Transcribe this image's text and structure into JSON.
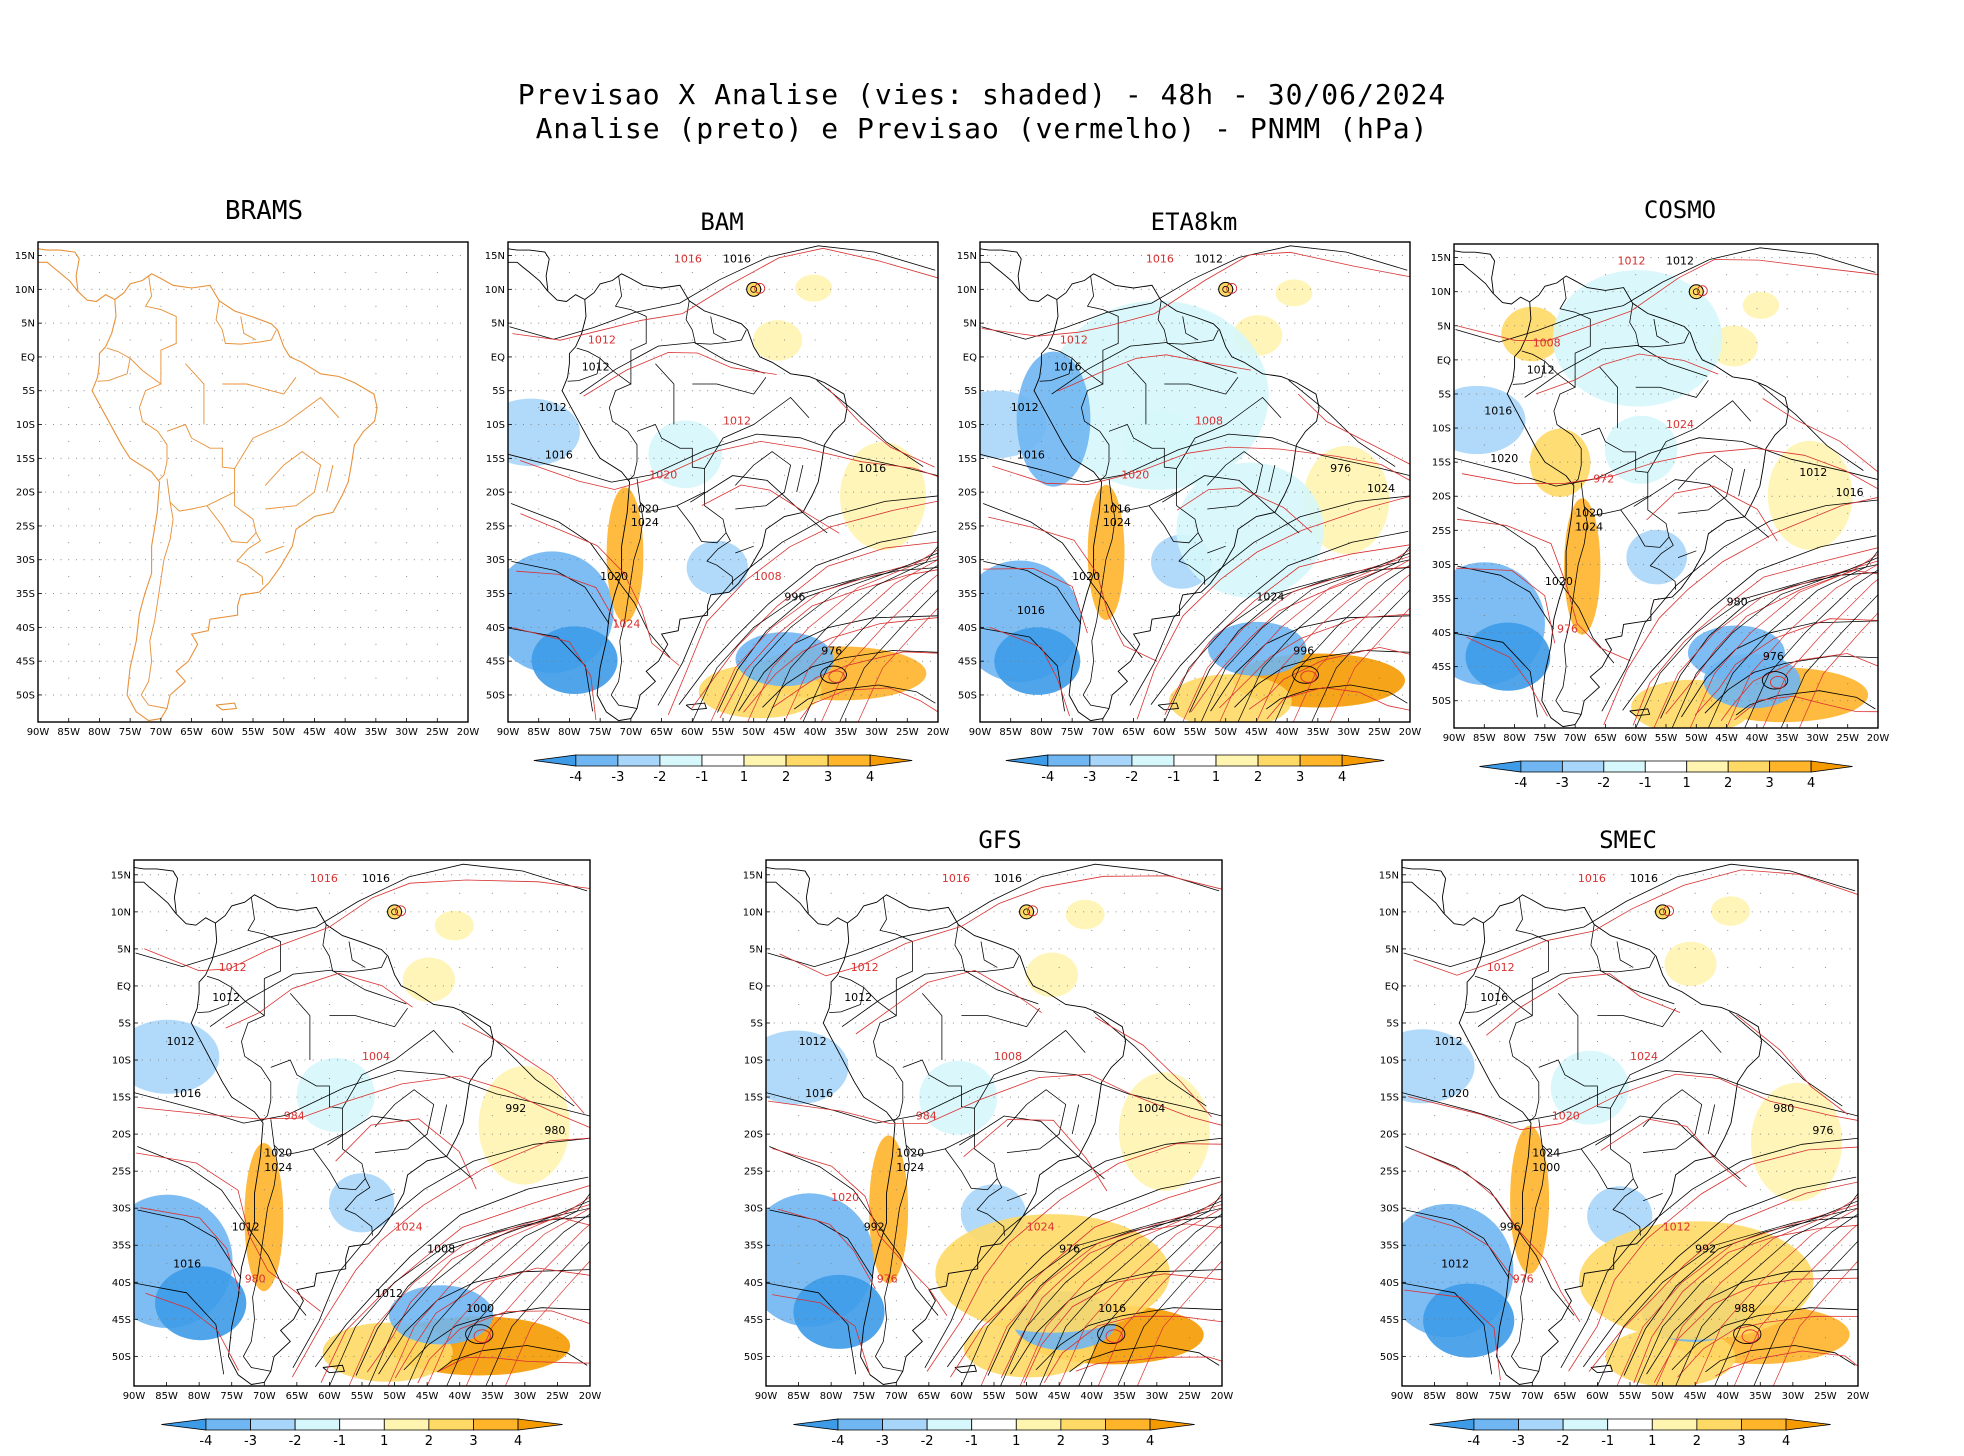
{
  "title": {
    "line1": "Previsao X Analise (vies: shaded) - 48h - 30/06/2024",
    "line2": "Analise (preto) e Previsao (vermelho) - PNMM (hPa)"
  },
  "axes": {
    "lat_labels": [
      "15N",
      "10N",
      "5N",
      "EQ",
      "5S",
      "10S",
      "15S",
      "20S",
      "25S",
      "30S",
      "35S",
      "40S",
      "45S",
      "50S"
    ],
    "lon_labels": [
      "90W",
      "85W",
      "80W",
      "75W",
      "70W",
      "65W",
      "60W",
      "55W",
      "50W",
      "45W",
      "40W",
      "35W",
      "30W",
      "25W",
      "20W"
    ]
  },
  "colorbar": {
    "labels": [
      "-4",
      "-3",
      "-2",
      "-1",
      "1",
      "2",
      "3",
      "4"
    ],
    "colors": [
      "#3d9be8",
      "#6fb6f2",
      "#a8d6fa",
      "#d6f7fb",
      "#ffffff",
      "#fff4b0",
      "#ffd966",
      "#ffb42a",
      "#f59a00"
    ]
  },
  "panels": [
    {
      "id": "brams",
      "name": "BRAMS",
      "has_colorbar": false,
      "analysis_labels": [],
      "forecast_labels": []
    },
    {
      "id": "bam",
      "name": "BAM",
      "has_colorbar": true,
      "analysis_labels": [
        "1016",
        "1012",
        "1012",
        "1016",
        "1020",
        "1024",
        "1020",
        "996",
        "976",
        "1016"
      ],
      "forecast_labels": [
        "1016",
        "1012",
        "1012",
        "1020",
        "1024",
        "1008"
      ]
    },
    {
      "id": "eta8km",
      "name": "ETA8km",
      "has_colorbar": true,
      "analysis_labels": [
        "1012",
        "1016",
        "1012",
        "1016",
        "1016",
        "1024",
        "1020",
        "1024",
        "996",
        "976",
        "1024",
        "1016"
      ],
      "forecast_labels": [
        "1016",
        "1012",
        "1008",
        "1020"
      ]
    },
    {
      "id": "cosmo",
      "name": "COSMO",
      "has_colorbar": true,
      "analysis_labels": [
        "1012",
        "1012",
        "1016",
        "1020",
        "1020",
        "1024",
        "1020",
        "980",
        "976",
        "1012",
        "1016"
      ],
      "forecast_labels": [
        "1012",
        "1008",
        "1024",
        "972",
        "976"
      ]
    },
    {
      "id": "panel5",
      "name": "",
      "has_colorbar": true,
      "analysis_labels": [
        "1016",
        "1012",
        "1012",
        "1016",
        "1020",
        "1024",
        "1012",
        "1008",
        "1000",
        "992",
        "980",
        "1016",
        "1012"
      ],
      "forecast_labels": [
        "1016",
        "1012",
        "1004",
        "984",
        "980",
        "1024"
      ]
    },
    {
      "id": "gfs",
      "name": "GFS",
      "has_colorbar": true,
      "analysis_labels": [
        "1016",
        "1012",
        "1012",
        "1016",
        "1020",
        "1024",
        "992",
        "976",
        "1016",
        "1004"
      ],
      "forecast_labels": [
        "1016",
        "1012",
        "1008",
        "984",
        "976",
        "1024",
        "1020"
      ]
    },
    {
      "id": "smec",
      "name": "SMEC",
      "has_colorbar": true,
      "analysis_labels": [
        "1016",
        "1016",
        "1012",
        "1020",
        "1024",
        "1000",
        "996",
        "992",
        "988",
        "980",
        "976",
        "1012"
      ],
      "forecast_labels": [
        "1016",
        "1012",
        "1024",
        "1020",
        "976",
        "1012"
      ]
    }
  ]
}
